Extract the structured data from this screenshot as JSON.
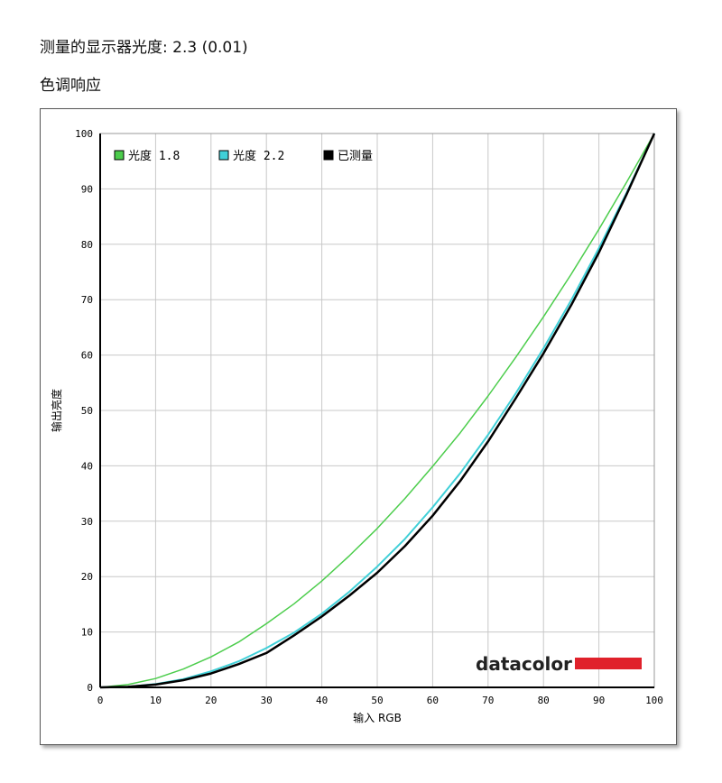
{
  "header": {
    "measured_gamma": "测量的显示器光度: 2.3 (0.01)",
    "section_title": "色调响应"
  },
  "chart_data": {
    "type": "line",
    "title": "",
    "xlabel": "输入 RGB",
    "ylabel": "输出亮度",
    "xlim": [
      0,
      100
    ],
    "ylim": [
      0,
      100
    ],
    "xticks": [
      0,
      10,
      20,
      30,
      40,
      50,
      60,
      70,
      80,
      90,
      100
    ],
    "yticks": [
      0,
      10,
      20,
      30,
      40,
      50,
      60,
      70,
      80,
      90,
      100
    ],
    "grid": true,
    "legend_position": "top-left",
    "series": [
      {
        "name": "光度 1.8",
        "color": "#4ccd4c",
        "x": [
          0,
          5,
          10,
          15,
          20,
          25,
          30,
          35,
          40,
          45,
          50,
          55,
          60,
          65,
          70,
          75,
          80,
          85,
          90,
          95,
          100
        ],
        "y": [
          0,
          0.5,
          1.6,
          3.3,
          5.5,
          8.2,
          11.5,
          15.1,
          19.2,
          23.8,
          28.7,
          34.1,
          39.9,
          46.0,
          52.6,
          59.6,
          66.9,
          74.6,
          82.7,
          91.2,
          100
        ]
      },
      {
        "name": "光度 2.2",
        "color": "#40d0d8",
        "x": [
          0,
          5,
          10,
          15,
          20,
          25,
          30,
          35,
          40,
          45,
          50,
          55,
          60,
          65,
          70,
          75,
          80,
          85,
          90,
          95,
          100
        ],
        "y": [
          0,
          0.1,
          0.6,
          1.5,
          2.9,
          4.7,
          7.1,
          9.9,
          13.3,
          17.3,
          21.8,
          26.8,
          32.5,
          38.7,
          45.6,
          53.1,
          61.2,
          69.9,
          79.3,
          89.3,
          100
        ]
      },
      {
        "name": "已测量",
        "color": "#000000",
        "x": [
          0,
          5,
          10,
          15,
          20,
          25,
          30,
          35,
          40,
          45,
          50,
          55,
          60,
          65,
          70,
          75,
          80,
          85,
          90,
          95,
          100
        ],
        "y": [
          0,
          0.1,
          0.5,
          1.3,
          2.5,
          4.2,
          6.2,
          9.4,
          12.8,
          16.6,
          20.7,
          25.5,
          31.0,
          37.3,
          44.4,
          52.2,
          60.3,
          69.0,
          78.5,
          89.0,
          100
        ]
      }
    ]
  },
  "branding": {
    "logo_text": "datacolor",
    "logo_color": "#e0212b"
  }
}
